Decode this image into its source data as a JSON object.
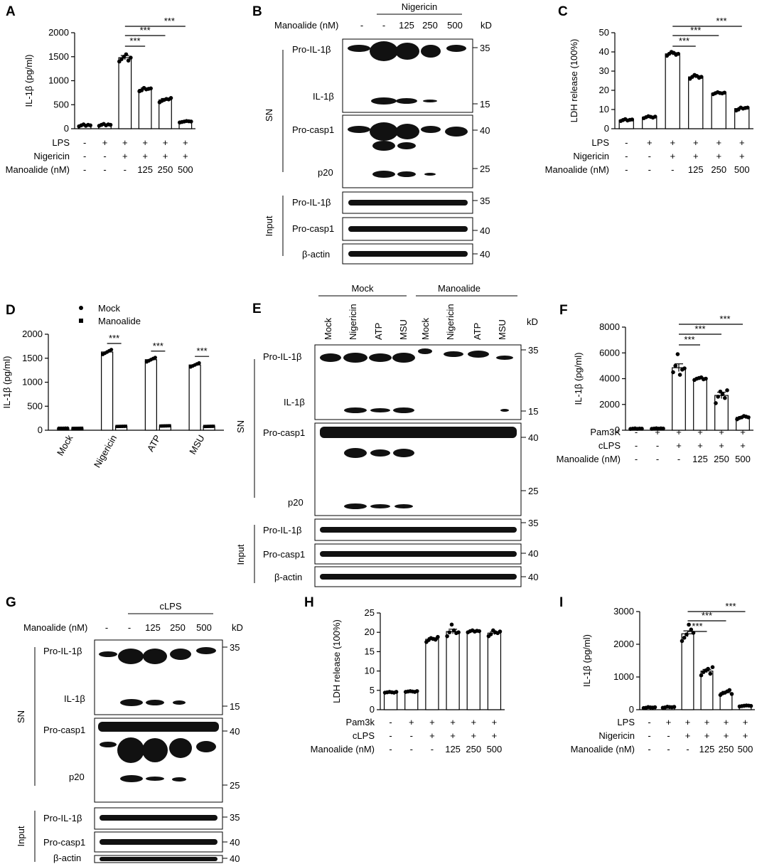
{
  "charts": [
    {
      "id": "A",
      "label": "A",
      "type": "bar",
      "ylabel": "IL-1β (pg/ml)",
      "ylim": [
        0,
        2000
      ],
      "yticks": [
        0,
        500,
        1000,
        1500,
        2000
      ],
      "values": [
        70,
        80,
        1480,
        820,
        600,
        150
      ],
      "errors": [
        15,
        15,
        45,
        30,
        30,
        15
      ],
      "points": [
        [
          50,
          70,
          90,
          60,
          80,
          70
        ],
        [
          60,
          80,
          100,
          70,
          90,
          80
        ],
        [
          1400,
          1450,
          1500,
          1550,
          1420,
          1480
        ],
        [
          780,
          800,
          850,
          820,
          830,
          840
        ],
        [
          550,
          580,
          600,
          620,
          610,
          640
        ],
        [
          130,
          140,
          150,
          160,
          155,
          150
        ]
      ],
      "rows": [
        {
          "name": "LPS",
          "signs": [
            "-",
            "+",
            "+",
            "+",
            "+",
            "+"
          ]
        },
        {
          "name": "Nigericin",
          "signs": [
            "-",
            "-",
            "+",
            "+",
            "+",
            "+"
          ]
        },
        {
          "name": "Manoalide (nM)",
          "signs": [
            "-",
            "-",
            "-",
            "125",
            "250",
            "500"
          ]
        }
      ],
      "sig": [
        "***",
        "***",
        "***"
      ]
    },
    {
      "id": "C",
      "label": "C",
      "type": "bar",
      "ylabel": "LDH release (100%)",
      "ylim": [
        0,
        50
      ],
      "yticks": [
        0,
        10,
        20,
        30,
        40,
        50
      ],
      "values": [
        4.5,
        6,
        39,
        27,
        18.5,
        10.5
      ],
      "errors": [
        0.3,
        0.4,
        0.6,
        0.6,
        0.3,
        0.5
      ],
      "points": [
        [
          4,
          4.5,
          5,
          4.3,
          4.6,
          4.8
        ],
        [
          5.5,
          6,
          6.5,
          6.2,
          5.8,
          6.3
        ],
        [
          38,
          39,
          40,
          39.5,
          38.5,
          39
        ],
        [
          26,
          27,
          28,
          27.5,
          26.5,
          27
        ],
        [
          18,
          18.5,
          19,
          18.6,
          18.4,
          18.8
        ],
        [
          9.5,
          10,
          11,
          10.5,
          10.8,
          11
        ]
      ],
      "rows": [
        {
          "name": "LPS",
          "signs": [
            "-",
            "+",
            "+",
            "+",
            "+",
            "+"
          ]
        },
        {
          "name": "Nigericin",
          "signs": [
            "-",
            "-",
            "+",
            "+",
            "+",
            "+"
          ]
        },
        {
          "name": "Manoalide (nM)",
          "signs": [
            "-",
            "-",
            "-",
            "125",
            "250",
            "500"
          ]
        }
      ],
      "sig": [
        "***",
        "***",
        "***"
      ]
    },
    {
      "id": "F",
      "label": "F",
      "type": "bar",
      "ylabel": "IL-1β (pg/ml)",
      "ylim": [
        0,
        8000
      ],
      "yticks": [
        0,
        2000,
        4000,
        6000,
        8000
      ],
      "values": [
        120,
        130,
        4850,
        4000,
        2700,
        1000
      ],
      "errors": [
        20,
        20,
        300,
        80,
        250,
        60
      ],
      "points": [
        [
          100,
          120,
          140,
          110,
          130,
          120
        ],
        [
          110,
          130,
          150,
          120,
          140,
          130
        ],
        [
          4500,
          5000,
          5900,
          4300,
          4700,
          4800
        ],
        [
          3900,
          4000,
          4050,
          4100,
          3950,
          4000
        ],
        [
          2100,
          2600,
          3000,
          2800,
          2500,
          3100
        ],
        [
          850,
          950,
          1000,
          1100,
          1050,
          1000
        ]
      ],
      "rows": [
        {
          "name": "Pam3K",
          "signs": [
            "-",
            "+",
            "+",
            "+",
            "+",
            "+"
          ]
        },
        {
          "name": "cLPS",
          "signs": [
            "-",
            "-",
            "+",
            "+",
            "+",
            "+"
          ]
        },
        {
          "name": "Manoalide (nM)",
          "signs": [
            "-",
            "-",
            "-",
            "125",
            "250",
            "500"
          ]
        }
      ],
      "sig": [
        "***",
        "***",
        "***"
      ]
    },
    {
      "id": "H",
      "label": "H",
      "type": "bar",
      "ylabel": "LDH release (100%)",
      "ylim": [
        0,
        25
      ],
      "yticks": [
        0,
        5,
        10,
        15,
        20,
        25
      ],
      "values": [
        4.5,
        4.7,
        18.2,
        20.2,
        20.3,
        19.8
      ],
      "errors": [
        0.1,
        0.1,
        0.4,
        0.6,
        0.2,
        0.4
      ],
      "points": [
        [
          4.4,
          4.5,
          4.6,
          4.5,
          4.4,
          4.6
        ],
        [
          4.6,
          4.7,
          4.8,
          4.7,
          4.6,
          4.8
        ],
        [
          17.5,
          18,
          18.5,
          18.3,
          18.1,
          18.8
        ],
        [
          19,
          20,
          22,
          20.5,
          19.8,
          20
        ],
        [
          20,
          20.3,
          20.5,
          20.2,
          20.4,
          20.3
        ],
        [
          19,
          19.5,
          20.5,
          20,
          19.8,
          20.2
        ]
      ],
      "rows": [
        {
          "name": "Pam3k",
          "signs": [
            "-",
            "+",
            "+",
            "+",
            "+",
            "+"
          ]
        },
        {
          "name": "cLPS",
          "signs": [
            "-",
            "-",
            "+",
            "+",
            "+",
            "+"
          ]
        },
        {
          "name": "Manoalide (nM)",
          "signs": [
            "-",
            "-",
            "-",
            "125",
            "250",
            "500"
          ]
        }
      ],
      "sig": []
    },
    {
      "id": "I",
      "label": "I",
      "type": "bar",
      "ylabel": "IL-1β (pg/ml)",
      "ylim": [
        0,
        3000
      ],
      "yticks": [
        0,
        1000,
        2000,
        3000
      ],
      "values": [
        70,
        80,
        2320,
        1180,
        520,
        120
      ],
      "errors": [
        10,
        10,
        90,
        50,
        40,
        10
      ],
      "points": [
        [
          50,
          60,
          80,
          70,
          65,
          75
        ],
        [
          60,
          70,
          90,
          80,
          75,
          85
        ],
        [
          2100,
          2200,
          2300,
          2600,
          2450,
          2350
        ],
        [
          1050,
          1150,
          1200,
          1250,
          1100,
          1300
        ],
        [
          450,
          500,
          520,
          560,
          600,
          480
        ],
        [
          100,
          110,
          120,
          130,
          125,
          115
        ]
      ],
      "rows": [
        {
          "name": "LPS",
          "signs": [
            "-",
            "+",
            "+",
            "+",
            "+",
            "+"
          ]
        },
        {
          "name": "Nigericin",
          "signs": [
            "-",
            "-",
            "+",
            "+",
            "+",
            "+"
          ]
        },
        {
          "name": "Manoalide (nM)",
          "signs": [
            "-",
            "-",
            "-",
            "125",
            "250",
            "500"
          ]
        }
      ],
      "sig": [
        "***",
        "***",
        "***"
      ]
    }
  ],
  "chartD": {
    "label": "D",
    "type": "bar",
    "ylabel": "IL-1β (pg/ml)",
    "ylim": [
      0,
      2000
    ],
    "yticks": [
      0,
      500,
      1000,
      1500,
      2000
    ],
    "categories": [
      "Mock",
      "Nigericin",
      "ATP",
      "MSU"
    ],
    "series": [
      {
        "name": "Mock",
        "values": [
          40,
          1630,
          1470,
          1360
        ]
      },
      {
        "name": "Manoalide",
        "values": [
          40,
          80,
          90,
          80
        ]
      }
    ],
    "sig": [
      "***",
      "***",
      "***"
    ]
  },
  "blots": {
    "B": {
      "label": "B",
      "top_group": "Nigericin",
      "header_label": "Manoalide (nM)",
      "lanes": [
        "-",
        "-",
        "125",
        "250",
        "500"
      ],
      "kd": "kD",
      "sn": "SN",
      "input": "Input",
      "rows": [
        "Pro-IL-1β",
        "IL-1β",
        "Pro-casp1",
        "p20",
        "Pro-IL-1β",
        "Pro-casp1",
        "β-actin"
      ],
      "markers": [
        "35",
        "15",
        "40",
        "25",
        "35",
        "40",
        "40"
      ]
    },
    "E": {
      "label": "E",
      "group1": "Mock",
      "group2": "Manoalide",
      "lanes": [
        "Mock",
        "Nigericin",
        "ATP",
        "MSU",
        "Mock",
        "Nigericin",
        "ATP",
        "MSU"
      ],
      "kd": "kD",
      "sn": "SN",
      "input": "Input",
      "rows": [
        "Pro-IL-1β",
        "IL-1β",
        "Pro-casp1",
        "p20",
        "Pro-IL-1β",
        "Pro-casp1",
        "β-actin"
      ],
      "markers": [
        "35",
        "15",
        "40",
        "25",
        "35",
        "40",
        "40"
      ]
    },
    "G": {
      "label": "G",
      "top_group": "cLPS",
      "header_label": "Manoalide (nM)",
      "lanes": [
        "-",
        "-",
        "125",
        "250",
        "500"
      ],
      "kd": "kD",
      "sn": "SN",
      "input": "Input",
      "rows": [
        "Pro-IL-1β",
        "IL-1β",
        "Pro-casp1",
        "p20",
        "Pro-IL-1β",
        "Pro-casp1",
        "β-actin"
      ],
      "markers": [
        "35",
        "15",
        "40",
        "25",
        "35",
        "40",
        "40"
      ]
    }
  }
}
